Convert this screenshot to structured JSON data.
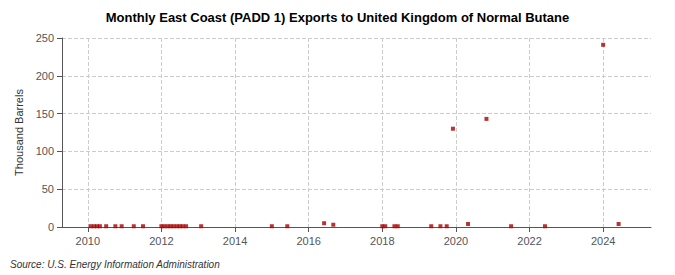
{
  "chart_data": {
    "type": "scatter",
    "title": "Monthly East Coast (PADD 1) Exports to United Kingdom of Normal Butane",
    "ylabel": "Thousand Barrels",
    "source": "Source: U.S. Energy Information Administration",
    "color": "#aa0000",
    "marker": "square",
    "grid": true,
    "xlim": [
      2009.3,
      2025.3
    ],
    "ylim": [
      0,
      250
    ],
    "xticks": [
      2010,
      2012,
      2014,
      2016,
      2018,
      2020,
      2022,
      2024
    ],
    "yticks": [
      0,
      50,
      100,
      150,
      200,
      250
    ],
    "x": [
      2010.08,
      2010.17,
      2010.25,
      2010.33,
      2010.5,
      2010.75,
      2010.92,
      2011.25,
      2011.5,
      2012.0,
      2012.08,
      2012.17,
      2012.25,
      2012.33,
      2012.42,
      2012.5,
      2012.58,
      2012.67,
      2013.08,
      2015.0,
      2015.42,
      2016.42,
      2016.67,
      2018.0,
      2018.08,
      2018.33,
      2018.42,
      2019.33,
      2019.58,
      2019.75,
      2019.92,
      2020.33,
      2020.83,
      2021.5,
      2022.42,
      2024.0,
      2024.42
    ],
    "values": [
      1,
      1,
      1,
      1,
      1,
      1,
      1,
      1,
      1,
      1,
      1,
      1,
      1,
      1,
      1,
      1,
      1,
      1,
      1,
      1,
      1,
      5,
      3,
      1,
      1,
      1,
      1,
      1,
      1,
      1,
      130,
      4,
      143,
      1,
      1,
      241,
      4
    ]
  }
}
